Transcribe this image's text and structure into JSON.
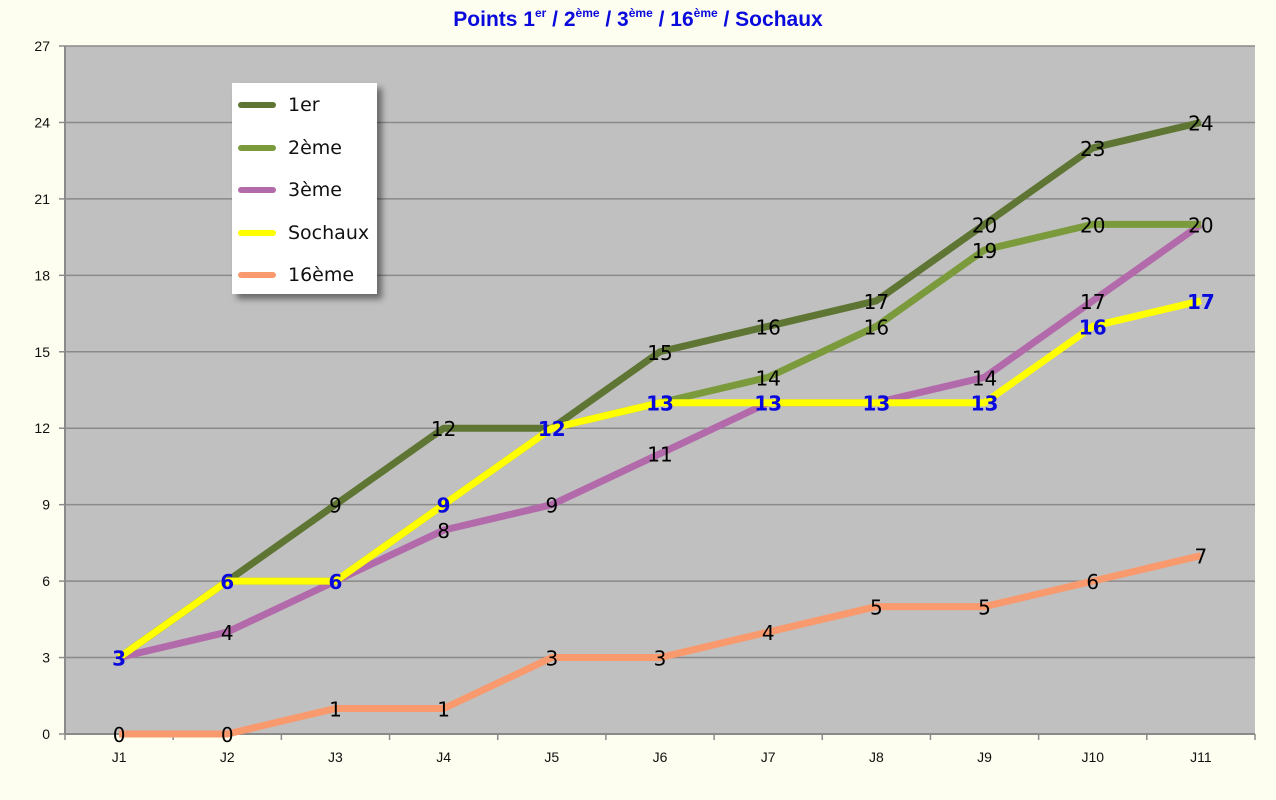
{
  "title": {
    "parts": [
      {
        "text": "Points 1",
        "sup": "er"
      },
      {
        "text": " / 2",
        "sup": "ème"
      },
      {
        "text": " / 3",
        "sup": "ème"
      },
      {
        "text": " / 16",
        "sup": "ème"
      },
      {
        "text": " / Sochaux",
        "sup": ""
      }
    ],
    "color": "#0a0adc"
  },
  "chart_data": {
    "type": "line",
    "title": "Points 1er / 2ème / 3ème / 16ème / Sochaux",
    "xlabel": "",
    "ylabel": "",
    "categories": [
      "J1",
      "J2",
      "J3",
      "J4",
      "J5",
      "J6",
      "J7",
      "J8",
      "J9",
      "J10",
      "J11"
    ],
    "ylim": [
      0,
      27
    ],
    "yticks": [
      0,
      3,
      6,
      9,
      12,
      15,
      18,
      21,
      24,
      27
    ],
    "grid": true,
    "legend_position": "upper-left-inset",
    "plot_background": "#c0c0c0",
    "series": [
      {
        "name": "1er",
        "color": "#5e7533",
        "label_color": "#000000",
        "label_bold": false,
        "values": [
          3,
          6,
          9,
          12,
          12,
          15,
          16,
          17,
          20,
          23,
          24
        ],
        "labels": [
          null,
          null,
          9,
          12,
          null,
          15,
          16,
          17,
          20,
          23,
          24
        ]
      },
      {
        "name": "2ème",
        "color": "#7a9a3c",
        "label_color": "#000000",
        "label_bold": false,
        "values": [
          3,
          6,
          6,
          9,
          12,
          13,
          14,
          16,
          19,
          20,
          20
        ],
        "labels": [
          null,
          null,
          null,
          null,
          null,
          null,
          14,
          16,
          19,
          20,
          null
        ]
      },
      {
        "name": "3ème",
        "color": "#b26aab",
        "label_color": "#000000",
        "label_bold": false,
        "values": [
          3,
          4,
          6,
          8,
          9,
          11,
          13,
          13,
          14,
          17,
          20
        ],
        "labels": [
          null,
          4,
          null,
          8,
          9,
          11,
          null,
          null,
          14,
          17,
          20
        ]
      },
      {
        "name": "Sochaux",
        "color": "#ffff00",
        "label_color": "#0a0adc",
        "label_bold": true,
        "values": [
          3,
          6,
          6,
          9,
          12,
          13,
          13,
          13,
          13,
          16,
          17
        ],
        "labels": [
          3,
          6,
          6,
          9,
          12,
          13,
          13,
          13,
          13,
          16,
          17
        ]
      },
      {
        "name": "16ème",
        "color": "#f9996e",
        "label_color": "#000000",
        "label_bold": false,
        "values": [
          0,
          0,
          1,
          1,
          3,
          3,
          4,
          5,
          5,
          6,
          7
        ],
        "labels": [
          0,
          0,
          1,
          1,
          3,
          3,
          4,
          5,
          5,
          6,
          7
        ]
      }
    ],
    "legend_order": [
      "1er",
      "2ème",
      "3ème",
      "Sochaux",
      "16ème"
    ]
  }
}
